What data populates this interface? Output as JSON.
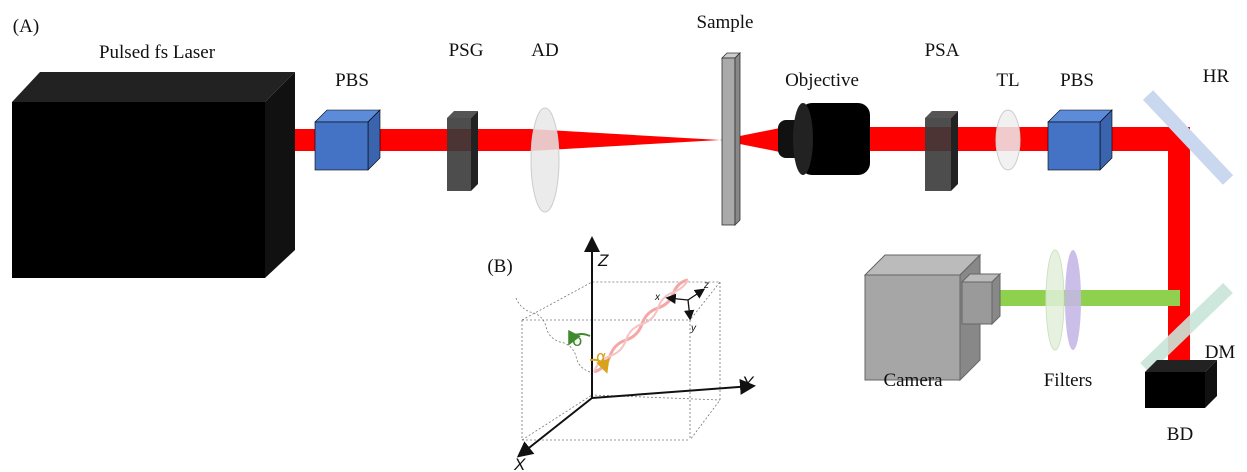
{
  "panel_a": {
    "label": "(A)",
    "components": {
      "laser": "Pulsed fs Laser",
      "pbs_1": "PBS",
      "psg": "PSG",
      "ad": "AD",
      "sample": "Sample",
      "objective": "Objective",
      "psa": "PSA",
      "tl": "TL",
      "pbs_2": "PBS",
      "hr": "HR",
      "camera": "Camera",
      "filters": "Filters",
      "dm": "DM",
      "bd": "BD"
    }
  },
  "panel_b": {
    "label": "(B)",
    "axes": {
      "z": "Z",
      "y": "Y",
      "x": "X"
    },
    "local_axes": {
      "x": "x",
      "y": "y",
      "z": "z"
    },
    "angles": {
      "delta": "δ",
      "alpha": "α"
    }
  }
}
